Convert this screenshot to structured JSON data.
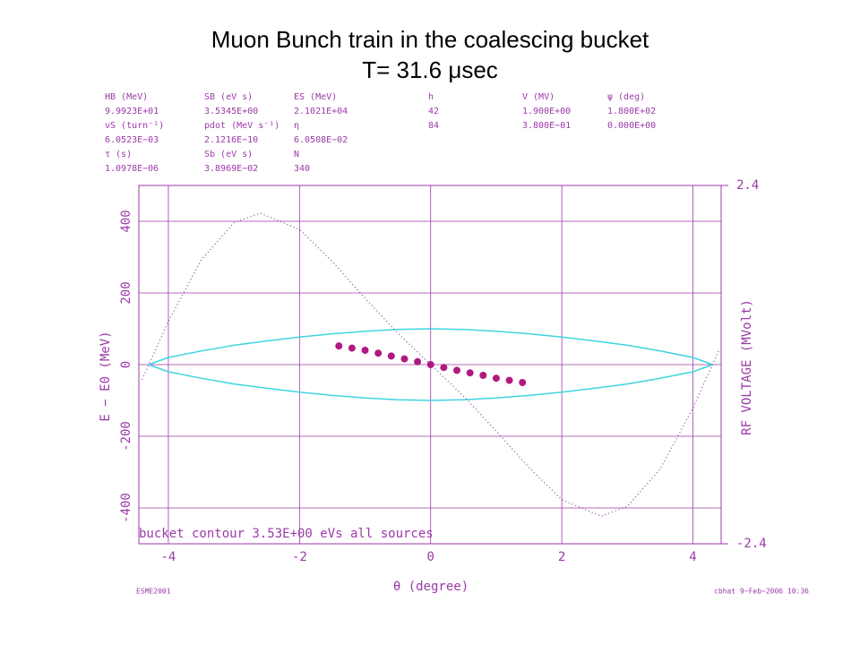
{
  "chart_data": {
    "type": "line",
    "title": "Muon Bunch train in the coalescing bucket",
    "subtitle": "T= 31.6 μsec",
    "x_label": "θ (degree)",
    "y_label": "E − E0 (MeV)",
    "y2_label": "RF VOLTAGE (MVolt)",
    "annotation": "bucket contour 3.53E+00 eVs all sources",
    "footer_left": "ESME2001",
    "footer_right": "cbhat 9−Feb−2006 10:36",
    "parameter_table": [
      [
        "HB (MeV)",
        "SB (eV s)",
        "ES (MeV)",
        "h",
        "V (MV)",
        "ψ (deg)"
      ],
      [
        "9.9923E+01",
        "3.5345E+00",
        "2.1021E+04",
        "42",
        "1.900E+00",
        "1.800E+02"
      ],
      [
        "νS (turn⁻¹)",
        "pdot (MeV s⁻¹)",
        "η",
        "84",
        "3.800E−01",
        "0.000E+00"
      ],
      [
        "6.0523E−03",
        "2.1216E−10",
        "6.0508E−02"
      ],
      [
        "τ (s)",
        "Sb (eV s)",
        "N"
      ],
      [
        "1.0978E−06",
        "3.8969E−02",
        "340"
      ]
    ],
    "xlim": [
      -4.45,
      4.43
    ],
    "xticks": [
      -4,
      -2,
      0,
      2,
      4
    ],
    "ylim": [
      -500,
      500
    ],
    "yticks": [
      -400,
      -200,
      0,
      200,
      400
    ],
    "y2lim": [
      -2.4,
      2.4
    ],
    "y2ticks": [
      -2.4,
      2.4
    ],
    "grid": true,
    "axis_color": "#9b3aa8",
    "series": [
      {
        "color": "#3fd4e0",
        "style": "line",
        "x": [
          -4.3,
          -4,
          -3.5,
          -3,
          -2.5,
          -2,
          -1.5,
          -1,
          -0.5,
          0,
          0.5,
          1,
          1.5,
          2,
          2.5,
          3,
          3.5,
          4,
          4.3
        ],
        "values": [
          0,
          20,
          38,
          54,
          66,
          77,
          86,
          93,
          98,
          100,
          98,
          93,
          86,
          77,
          66,
          54,
          38,
          20,
          0
        ]
      },
      {
        "color": "#3fd4e0",
        "style": "line",
        "x": [
          -4.3,
          -4,
          -3.5,
          -3,
          -2.5,
          -2,
          -1.5,
          -1,
          -0.5,
          0,
          0.5,
          1,
          1.5,
          2,
          2.5,
          3,
          3.5,
          4,
          4.3
        ],
        "values": [
          0,
          -20,
          -38,
          -54,
          -66,
          -77,
          -86,
          -93,
          -98,
          -100,
          -98,
          -93,
          -86,
          -77,
          -66,
          -54,
          -38,
          -20,
          0
        ]
      },
      {
        "color": "#8a3a9a",
        "style": "dotted",
        "axis": "y2",
        "x": [
          -4.4,
          -4,
          -3.5,
          -3,
          -2.6,
          -2,
          -1.5,
          -1,
          -0.5,
          0,
          0.5,
          1,
          1.5,
          2,
          2.6,
          3,
          3.5,
          4,
          4.4
        ],
        "values": [
          -0.2,
          0.58,
          1.4,
          1.9,
          2.03,
          1.81,
          1.38,
          0.89,
          0.42,
          0,
          -0.42,
          -0.89,
          -1.38,
          -1.81,
          -2.03,
          -1.9,
          -1.4,
          -0.58,
          0.2
        ]
      },
      {
        "color": "#b01a80",
        "style": "markers",
        "x": [
          -1.4,
          -1.2,
          -1,
          -0.8,
          -0.6,
          -0.4,
          -0.2,
          0,
          0.2,
          0.4,
          0.6,
          0.8,
          1,
          1.2,
          1.4
        ],
        "values": [
          52,
          46,
          40,
          32,
          24,
          16,
          8,
          0,
          -8,
          -16,
          -23,
          -30,
          -38,
          -44,
          -50
        ]
      }
    ]
  }
}
